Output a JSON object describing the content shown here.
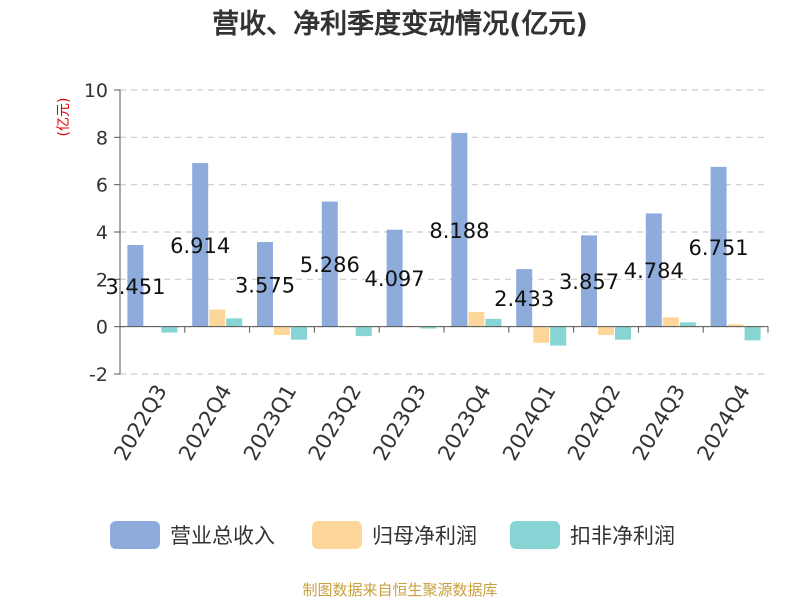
{
  "chart_data": {
    "type": "bar",
    "title": "营收、净利季度变动情况(亿元)",
    "unit_label": "(亿元)",
    "categories": [
      "2022Q3",
      "2022Q4",
      "2023Q1",
      "2023Q2",
      "2023Q3",
      "2023Q4",
      "2024Q1",
      "2024Q2",
      "2024Q3",
      "2024Q4"
    ],
    "series": [
      {
        "name": "营业总收入",
        "color": "#8eacdb",
        "values": [
          3.451,
          6.914,
          3.575,
          5.286,
          4.097,
          8.188,
          2.433,
          3.857,
          4.784,
          6.751
        ]
      },
      {
        "name": "归母净利润",
        "color": "#fdd79a",
        "values": [
          0.02,
          0.72,
          -0.35,
          -0.02,
          0.03,
          0.62,
          -0.68,
          -0.35,
          0.4,
          0.1
        ]
      },
      {
        "name": "扣非净利润",
        "color": "#86d4d4",
        "values": [
          -0.25,
          0.35,
          -0.55,
          -0.4,
          -0.08,
          0.33,
          -0.8,
          -0.55,
          0.18,
          -0.58
        ]
      }
    ],
    "data_labels": [
      "3.451",
      "6.914",
      "3.575",
      "5.286",
      "4.097",
      "8.188",
      "2.433",
      "3.857",
      "4.784",
      "6.751"
    ],
    "yticks": [
      "10",
      "8",
      "6",
      "4",
      "2",
      "0",
      "-2"
    ],
    "ylim": [
      -2,
      10
    ],
    "grid": true,
    "legend_position": "bottom"
  },
  "source_text": "制图数据来自恒生聚源数据库"
}
